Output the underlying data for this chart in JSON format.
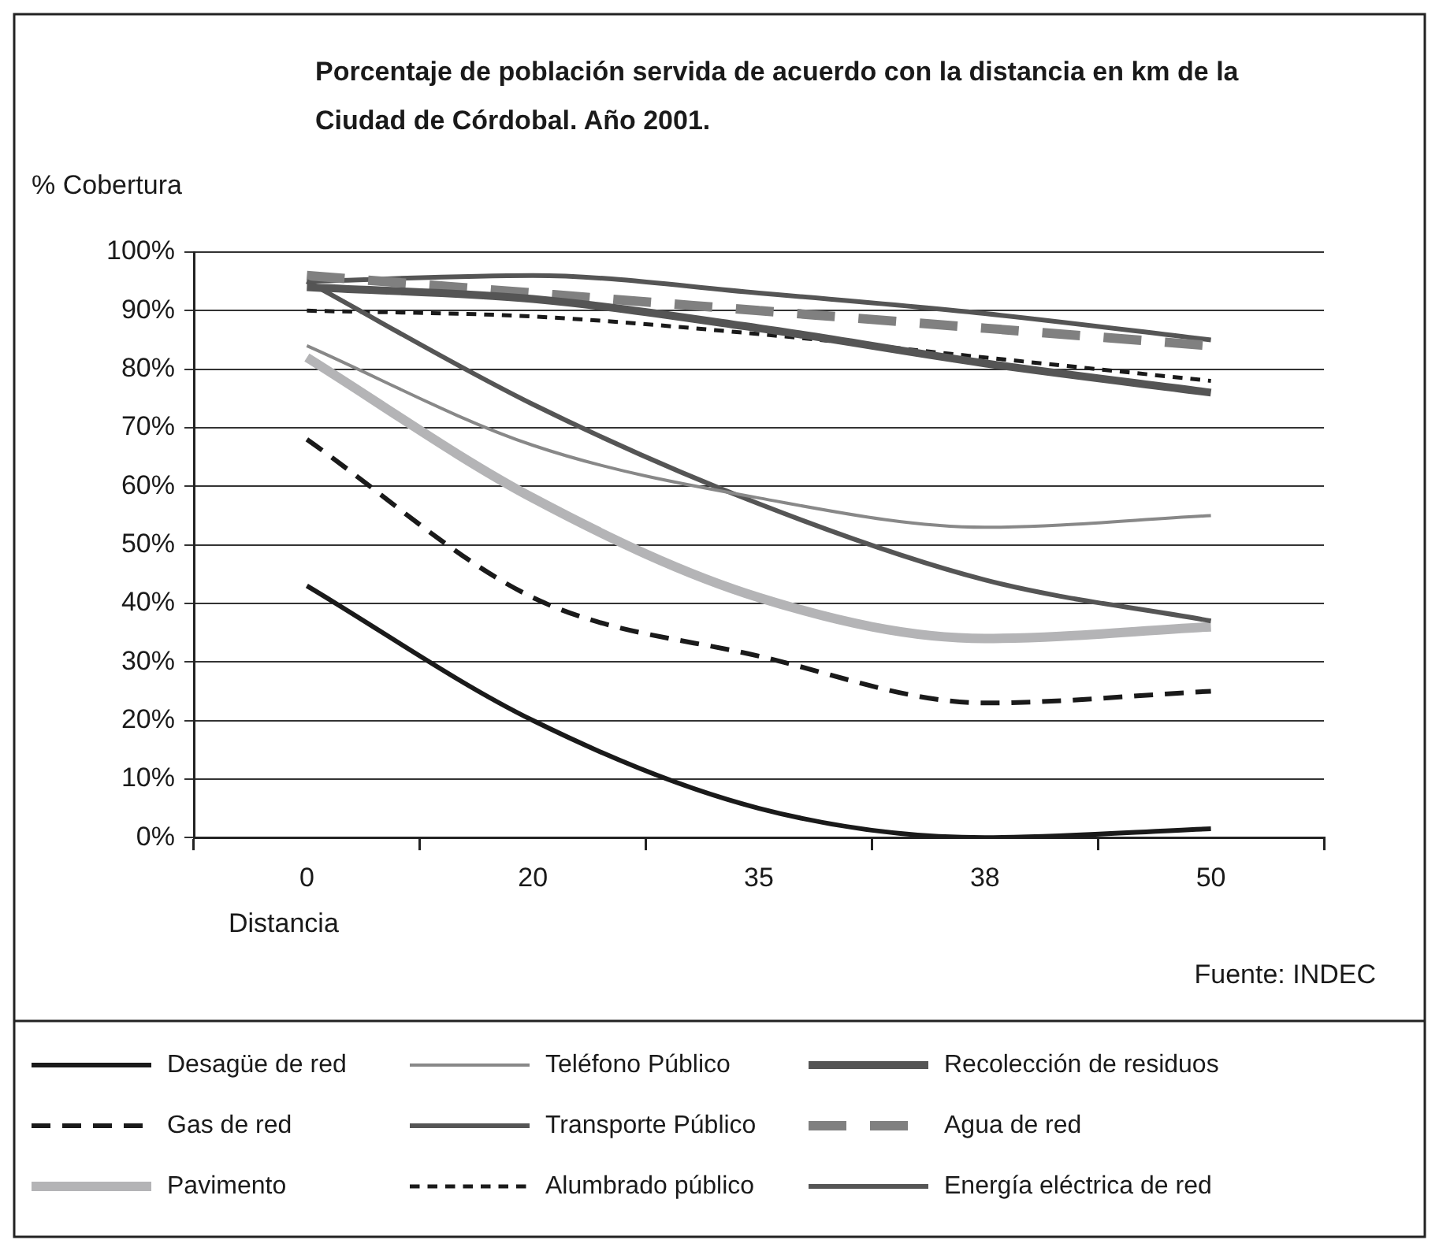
{
  "chart_data": {
    "type": "line",
    "title": "Porcentaje de población servida de acuerdo con la distancia en km de la Ciudad de Córdobal. Año 2001.",
    "ylabel": "% Cobertura",
    "xlabel": "Distancia",
    "annotations": [
      "Fuente: INDEC"
    ],
    "categories": [
      "0",
      "20",
      "35",
      "38",
      "50"
    ],
    "ylim": [
      0,
      100
    ],
    "yticks": [
      {
        "value": 0,
        "label": "0%"
      },
      {
        "value": 10,
        "label": "10%"
      },
      {
        "value": 20,
        "label": "20%"
      },
      {
        "value": 30,
        "label": "30%"
      },
      {
        "value": 40,
        "label": "40%"
      },
      {
        "value": 50,
        "label": "50%"
      },
      {
        "value": 60,
        "label": "60%"
      },
      {
        "value": 70,
        "label": "70%"
      },
      {
        "value": 80,
        "label": "80%"
      },
      {
        "value": 90,
        "label": "90%"
      },
      {
        "value": 100,
        "label": "100%"
      }
    ],
    "grid": "y",
    "legend": "bottom",
    "marker": "none",
    "series": [
      {
        "name": "Desagüe de red",
        "color": "#1a1a1a",
        "line_style": "solid",
        "values": [
          43,
          20,
          5,
          0,
          1.5
        ]
      },
      {
        "name": "Teléfono Público",
        "color": "#888888",
        "line_style": "solid",
        "values": [
          84,
          67,
          58,
          53,
          55
        ]
      },
      {
        "name": "Recolección de residuos",
        "color": "#555555",
        "line_style": "solid",
        "values": [
          94,
          92,
          87,
          81,
          76
        ]
      },
      {
        "name": "Gas de red",
        "color": "#1a1a1a",
        "line_style": "dashed",
        "values": [
          68,
          41,
          31,
          23,
          25
        ]
      },
      {
        "name": "Transporte Público",
        "color": "#555555",
        "line_style": "solid",
        "values": [
          95,
          74,
          57,
          44,
          37
        ]
      },
      {
        "name": "Agua de red",
        "color": "#808080",
        "line_style": "dashed",
        "values": [
          96,
          93,
          90,
          87,
          84
        ]
      },
      {
        "name": "Pavimento",
        "color": "#b4b4b6",
        "line_style": "solid",
        "values": [
          82,
          58,
          41,
          34,
          36
        ]
      },
      {
        "name": "Alumbrado público",
        "color": "#1a1a1a",
        "line_style": "dotted",
        "values": [
          90,
          89,
          86,
          82,
          78
        ]
      },
      {
        "name": "Energía eléctrica de red",
        "color": "#555555",
        "line_style": "solid",
        "values": [
          95,
          96,
          93,
          89.5,
          85
        ]
      }
    ]
  }
}
